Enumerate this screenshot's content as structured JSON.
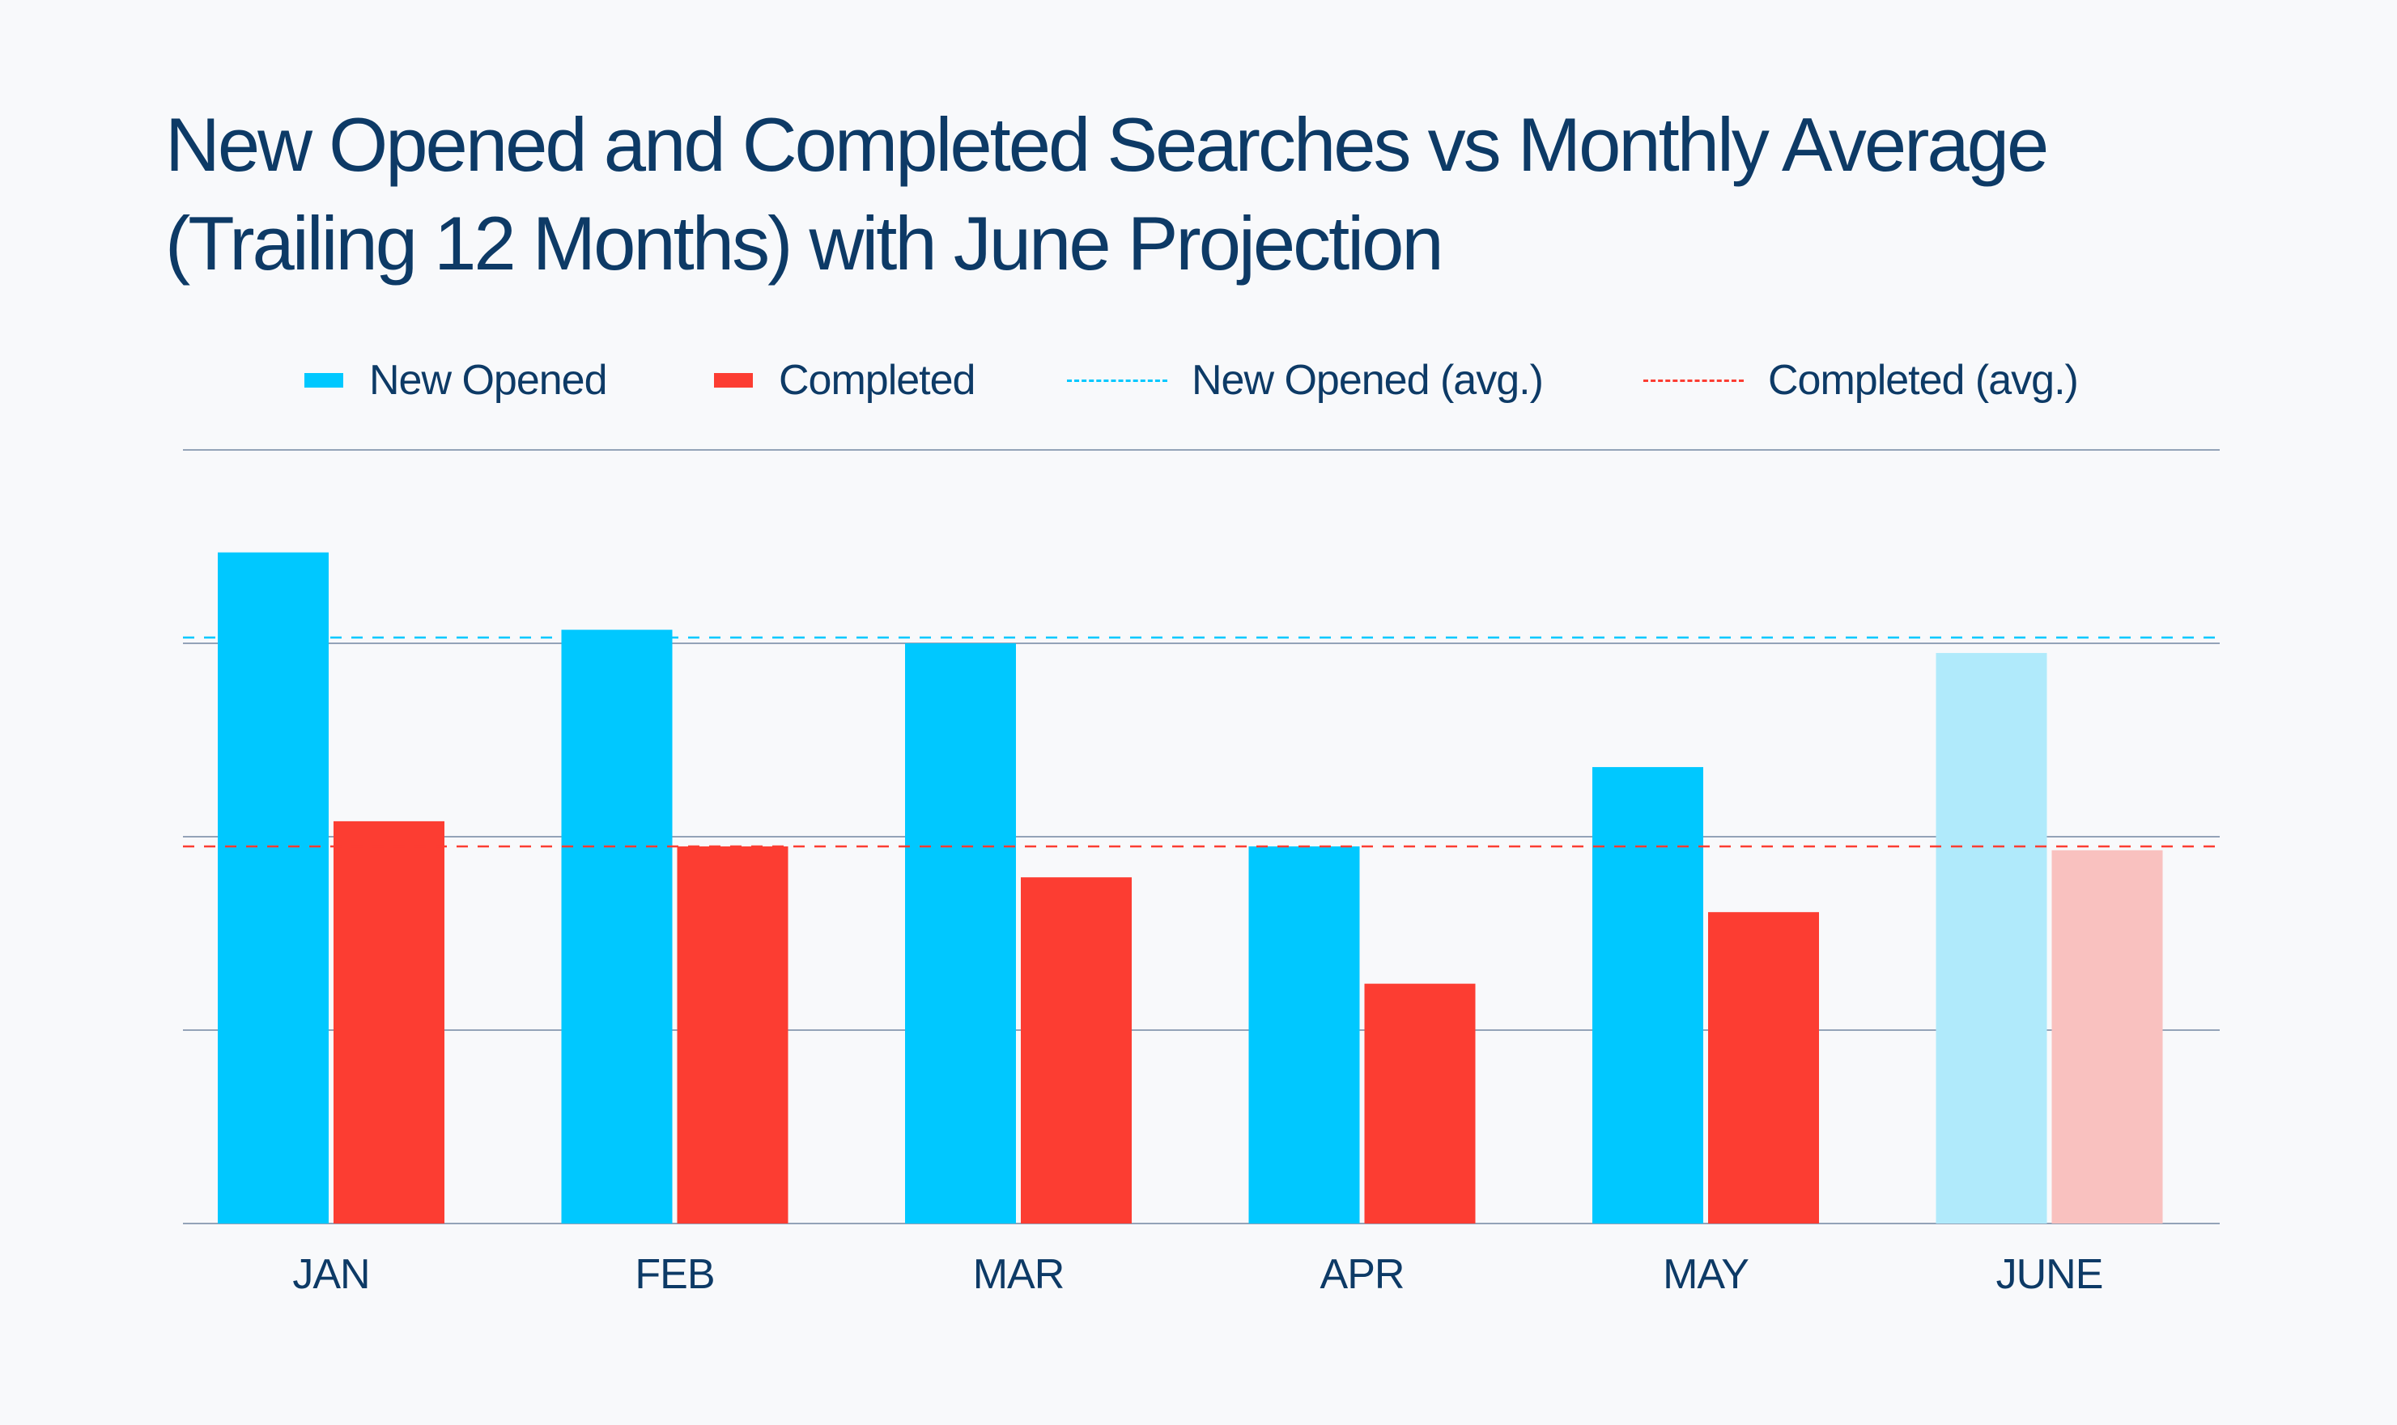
{
  "colors": {
    "background": "#f8f9fb",
    "title": "#0d3a66",
    "new_opened": "#00c8ff",
    "completed": "#fc3d32",
    "new_opened_projection": "#b0eafb",
    "completed_projection": "#f9c1bf",
    "gridline": "#94a3b8"
  },
  "chart_data": {
    "type": "bar",
    "title_lines": [
      "New Opened and Completed Searches vs Monthly Average",
      "(Trailing 12 Months) with June Projection"
    ],
    "categories": [
      "JAN",
      "FEB",
      "MAR",
      "APR",
      "MAY",
      "JUNE"
    ],
    "projected_category": "JUNE",
    "series": [
      {
        "name": "New Opened",
        "values": [
          3.47,
          3.07,
          3.0,
          1.95,
          2.36,
          2.95
        ]
      },
      {
        "name": "Completed",
        "values": [
          2.08,
          1.95,
          1.79,
          1.24,
          1.61,
          1.93
        ]
      }
    ],
    "reference_lines": [
      {
        "name": "New Opened (avg.)",
        "value": 3.03,
        "style": "dashed"
      },
      {
        "name": "Completed (avg.)",
        "value": 1.95,
        "style": "dashed"
      }
    ],
    "ylim": [
      0,
      4
    ],
    "y_gridlines": [
      1,
      2,
      3,
      4
    ],
    "y_tick_labels_shown": false,
    "legend_position": "top",
    "xlabel": "",
    "ylabel": ""
  }
}
